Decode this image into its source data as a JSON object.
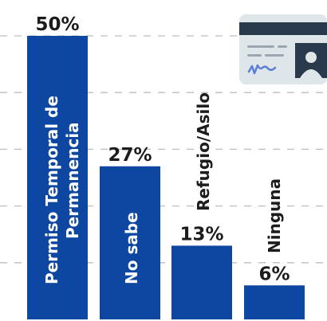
{
  "chart_data": {
    "type": "bar",
    "categories": [
      "Permiso Temporal de Permanencia",
      "No sabe",
      "Refugio/Asilo",
      "Ninguna"
    ],
    "category_lines": [
      [
        "Permiso Temporal de",
        "Permanencia"
      ],
      [
        "No sabe"
      ],
      [
        "Refugio/Asilo"
      ],
      [
        "Ninguna"
      ]
    ],
    "values": [
      50,
      27,
      13,
      6
    ],
    "value_labels": [
      "50%",
      "27%",
      "13%",
      "6%"
    ],
    "unit": "%",
    "ylim": [
      0,
      55
    ],
    "grid": true,
    "bar_color": "#0d47a1",
    "grid_color": "#bdbdbd",
    "title": "",
    "xlabel": "",
    "ylabel": ""
  },
  "decoration": {
    "icon": "id-card-icon",
    "card_color": "#dfe6ea",
    "card_header_color": "#283a4b",
    "card_line_color": "#9aa7b1",
    "signature_color": "#5b7fd6"
  }
}
